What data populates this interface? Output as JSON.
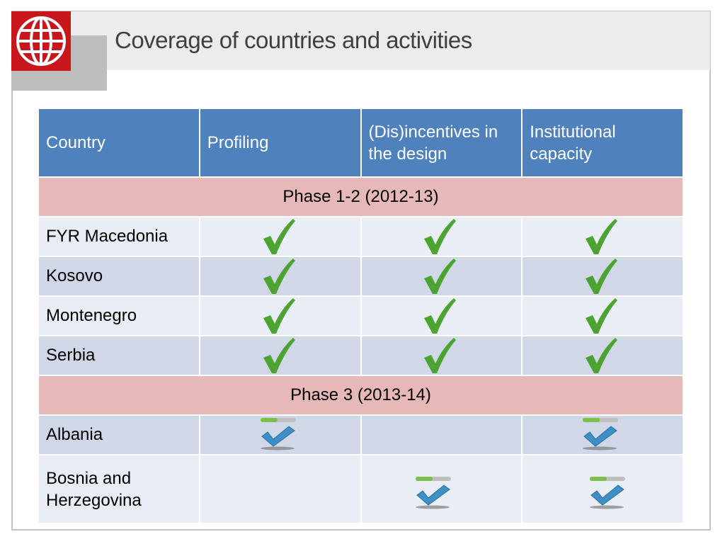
{
  "header": {
    "title": "Coverage of countries and activities"
  },
  "logo": {
    "name": "globe-logo",
    "color": "#c8161d"
  },
  "table": {
    "columns": [
      "Country",
      "Profiling",
      "(Dis)incentives in the design",
      "Institutional capacity"
    ],
    "phases": [
      {
        "label": "Phase 1-2 (2012-13)",
        "rows": [
          {
            "country": "FYR Macedonia",
            "profiling": "completed",
            "disincentives": "completed",
            "institutional": "completed"
          },
          {
            "country": "Kosovo",
            "profiling": "completed",
            "disincentives": "completed",
            "institutional": "completed"
          },
          {
            "country": "Montenegro",
            "profiling": "completed",
            "disincentives": "completed",
            "institutional": "completed"
          },
          {
            "country": "Serbia",
            "profiling": "completed",
            "disincentives": "completed",
            "institutional": "completed"
          }
        ]
      },
      {
        "label": "Phase 3 (2013-14)",
        "rows": [
          {
            "country": "Albania",
            "profiling": "in-progress",
            "disincentives": "",
            "institutional": "in-progress"
          },
          {
            "country": "Bosnia and Herzegovina",
            "profiling": "",
            "disincentives": "in-progress",
            "institutional": "in-progress"
          }
        ]
      }
    ]
  },
  "colors": {
    "header_bg": "#4f81bd",
    "phase_bg": "#e6b9b8",
    "row_light": "#e9edf4",
    "row_dark": "#d0d8e8",
    "check_green": "#4da331",
    "check_blue": "#3d8fc6",
    "progress_green": "#7cc04b"
  }
}
